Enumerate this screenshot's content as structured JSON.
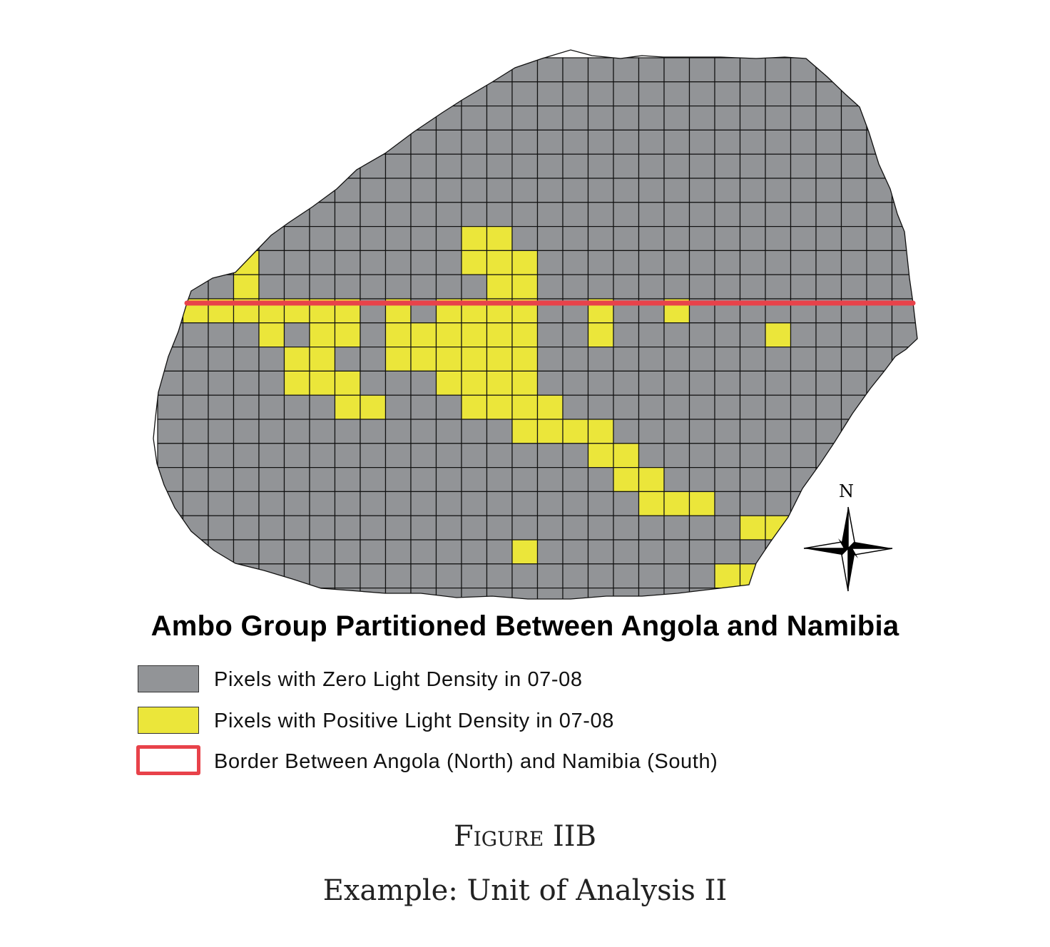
{
  "map": {
    "title": "Ambo Group Partitioned Between Angola and Namibia",
    "colors": {
      "zero_light": "#929497",
      "positive_light": "#ebe63a",
      "border_line": "#e8424a",
      "grid_line": "#111111"
    },
    "legend": [
      {
        "key": "zero",
        "label": "Pixels with Zero Light Density in 07-08",
        "swatch": "gray-fill"
      },
      {
        "key": "positive",
        "label": "Pixels with Positive Light Density in 07-08",
        "swatch": "yellow-fill"
      },
      {
        "key": "border",
        "label": "Border Between Angola (North) and Namibia (South)",
        "swatch": "red-outline"
      }
    ],
    "compass": {
      "label": "N",
      "icon": "north-arrow-compass-icon"
    }
  },
  "figure": {
    "label": "Figure IIB",
    "caption": "Example: Unit of Analysis II"
  }
}
